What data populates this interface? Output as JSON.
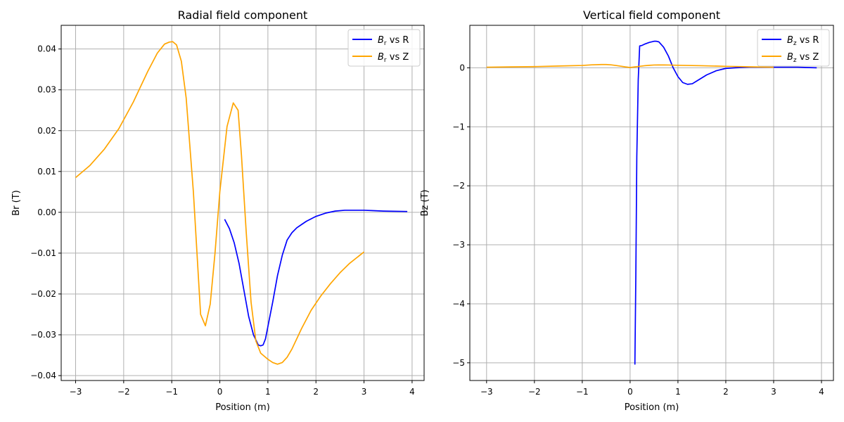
{
  "chart_data": [
    {
      "type": "line",
      "title": "Radial field component",
      "xlabel": "Position (m)",
      "ylabel": "Br (T)",
      "xlim": [
        -3.3,
        4.25
      ],
      "ylim": [
        -0.0412,
        0.0458
      ],
      "xticks": [
        -3,
        -2,
        -1,
        0,
        1,
        2,
        3,
        4
      ],
      "xtick_labels": [
        "−3",
        "−2",
        "−1",
        "0",
        "1",
        "2",
        "3",
        "4"
      ],
      "yticks": [
        -0.04,
        -0.03,
        -0.02,
        -0.01,
        0.0,
        0.01,
        0.02,
        0.03,
        0.04
      ],
      "ytick_labels": [
        "−0.04",
        "−0.03",
        "−0.02",
        "−0.01",
        "0.00",
        "0.01",
        "0.02",
        "0.03",
        "0.04"
      ],
      "grid": true,
      "legend_position": "top-right",
      "series": [
        {
          "name": "Br vs R",
          "legend_symbol": "B",
          "legend_sub": "r",
          "legend_rest": " vs R",
          "color": "#0000ff",
          "x": [
            0.1,
            0.2,
            0.3,
            0.4,
            0.5,
            0.6,
            0.7,
            0.8,
            0.85,
            0.9,
            0.95,
            1.0,
            1.1,
            1.2,
            1.3,
            1.4,
            1.5,
            1.6,
            1.7,
            1.8,
            2.0,
            2.2,
            2.4,
            2.6,
            2.8,
            3.0,
            3.2,
            3.4,
            3.6,
            3.9
          ],
          "y": [
            -0.0017,
            -0.004,
            -0.0075,
            -0.0125,
            -0.019,
            -0.0255,
            -0.03,
            -0.0325,
            -0.0327,
            -0.0325,
            -0.031,
            -0.028,
            -0.022,
            -0.0155,
            -0.0105,
            -0.0068,
            -0.005,
            -0.0038,
            -0.003,
            -0.0022,
            -0.001,
            -0.0002,
            0.0003,
            0.0005,
            0.0005,
            0.0005,
            0.0004,
            0.0003,
            0.00025,
            0.0002
          ]
        },
        {
          "name": "Br vs Z",
          "legend_symbol": "B",
          "legend_sub": "r",
          "legend_rest": " vs Z",
          "color": "#ffa500",
          "x": [
            -3.0,
            -2.7,
            -2.4,
            -2.1,
            -1.8,
            -1.5,
            -1.3,
            -1.15,
            -1.05,
            -0.98,
            -0.9,
            -0.8,
            -0.7,
            -0.55,
            -0.4,
            -0.3,
            -0.2,
            -0.1,
            0.0,
            0.15,
            0.28,
            0.38,
            0.45,
            0.55,
            0.65,
            0.75,
            0.85,
            1.0,
            1.1,
            1.2,
            1.3,
            1.4,
            1.5,
            1.7,
            1.9,
            2.1,
            2.3,
            2.5,
            2.7,
            3.0
          ],
          "y": [
            0.0085,
            0.0115,
            0.0155,
            0.0205,
            0.027,
            0.0345,
            0.039,
            0.0412,
            0.0417,
            0.0418,
            0.041,
            0.037,
            0.028,
            0.005,
            -0.025,
            -0.0278,
            -0.0225,
            -0.01,
            0.005,
            0.021,
            0.0268,
            0.025,
            0.014,
            -0.005,
            -0.022,
            -0.0315,
            -0.0345,
            -0.036,
            -0.0368,
            -0.0372,
            -0.0368,
            -0.0355,
            -0.0335,
            -0.0285,
            -0.024,
            -0.0205,
            -0.0175,
            -0.0148,
            -0.0125,
            -0.0097
          ]
        }
      ]
    },
    {
      "type": "line",
      "title": "Vertical field component",
      "xlabel": "Position (m)",
      "ylabel": "Bz (T)",
      "xlim": [
        -3.35,
        4.25
      ],
      "ylim": [
        -5.3,
        0.72
      ],
      "xticks": [
        -3,
        -2,
        -1,
        0,
        1,
        2,
        3,
        4
      ],
      "xtick_labels": [
        "−3",
        "−2",
        "−1",
        "0",
        "1",
        "2",
        "3",
        "4"
      ],
      "yticks": [
        -5,
        -4,
        -3,
        -2,
        -1,
        0
      ],
      "ytick_labels": [
        "−5",
        "−4",
        "−3",
        "−2",
        "−1",
        "0"
      ],
      "grid": true,
      "legend_position": "top-right",
      "series": [
        {
          "name": "Bz vs R",
          "legend_symbol": "B",
          "legend_sub": "z",
          "legend_rest": " vs R",
          "color": "#0000ff",
          "x": [
            0.1,
            0.12,
            0.14,
            0.17,
            0.2,
            0.25,
            0.3,
            0.4,
            0.5,
            0.55,
            0.6,
            0.7,
            0.8,
            0.9,
            1.0,
            1.1,
            1.2,
            1.3,
            1.4,
            1.6,
            1.8,
            2.0,
            2.2,
            2.5,
            3.0,
            3.5,
            3.9
          ],
          "y": [
            -5.03,
            -3.5,
            -1.5,
            -0.2,
            0.37,
            0.38,
            0.4,
            0.43,
            0.45,
            0.45,
            0.44,
            0.35,
            0.2,
            0.0,
            -0.15,
            -0.25,
            -0.28,
            -0.27,
            -0.22,
            -0.12,
            -0.05,
            -0.01,
            0.0,
            0.01,
            0.01,
            0.01,
            0.0
          ]
        },
        {
          "name": "Bz vs Z",
          "legend_symbol": "B",
          "legend_sub": "z",
          "legend_rest": " vs Z",
          "color": "#ffa500",
          "x": [
            -3.0,
            -2.5,
            -2.0,
            -1.5,
            -1.0,
            -0.8,
            -0.6,
            -0.5,
            -0.4,
            -0.3,
            -0.2,
            -0.1,
            0.0,
            0.1,
            0.2,
            0.3,
            0.4,
            0.5,
            0.6,
            0.7,
            0.8,
            1.0,
            1.5,
            2.0,
            2.5,
            3.0
          ],
          "y": [
            0.01,
            0.015,
            0.02,
            0.03,
            0.04,
            0.05,
            0.055,
            0.055,
            0.05,
            0.04,
            0.028,
            0.015,
            0.005,
            0.015,
            0.025,
            0.035,
            0.042,
            0.047,
            0.048,
            0.048,
            0.047,
            0.043,
            0.035,
            0.025,
            0.017,
            0.01
          ]
        }
      ]
    }
  ]
}
